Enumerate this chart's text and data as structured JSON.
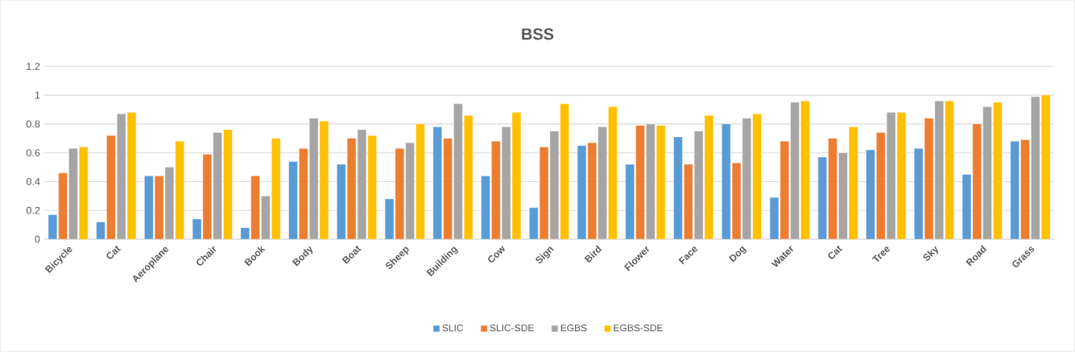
{
  "chart_data": {
    "type": "bar",
    "title": "BSS",
    "categories": [
      "Bicycle",
      "Cat",
      "Aeroplane",
      "Chair",
      "Book",
      "Body",
      "Boat",
      "Sheep",
      "Building",
      "Cow",
      "Sign",
      "Bird",
      "Flower",
      "Face",
      "Dog",
      "Water",
      "Cat",
      "Tree",
      "Sky",
      "Road",
      "Grass"
    ],
    "series": [
      {
        "name": "SLIC",
        "color": "#5b9bd5",
        "values": [
          0.17,
          0.12,
          0.44,
          0.14,
          0.08,
          0.54,
          0.52,
          0.28,
          0.78,
          0.44,
          0.22,
          0.65,
          0.52,
          0.71,
          0.8,
          0.29,
          0.57,
          0.62,
          0.63,
          0.45,
          0.68
        ]
      },
      {
        "name": "SLIC-SDE",
        "color": "#ed7d31",
        "values": [
          0.46,
          0.72,
          0.44,
          0.59,
          0.44,
          0.63,
          0.7,
          0.63,
          0.7,
          0.68,
          0.64,
          0.67,
          0.79,
          0.52,
          0.53,
          0.68,
          0.7,
          0.74,
          0.84,
          0.8,
          0.69
        ]
      },
      {
        "name": "EGBS",
        "color": "#a5a5a5",
        "values": [
          0.63,
          0.87,
          0.5,
          0.74,
          0.3,
          0.84,
          0.76,
          0.67,
          0.94,
          0.78,
          0.75,
          0.78,
          0.8,
          0.75,
          0.84,
          0.95,
          0.6,
          0.88,
          0.96,
          0.92,
          0.99
        ]
      },
      {
        "name": "EGBS-SDE",
        "color": "#ffc000",
        "values": [
          0.64,
          0.88,
          0.68,
          0.76,
          0.7,
          0.82,
          0.72,
          0.8,
          0.86,
          0.88,
          0.94,
          0.92,
          0.79,
          0.86,
          0.87,
          0.96,
          0.78,
          0.88,
          0.96,
          0.95,
          1.0
        ]
      }
    ],
    "ylim": [
      0,
      1.2
    ],
    "yticks": [
      0,
      0.2,
      0.4,
      0.6,
      0.8,
      1,
      1.2
    ],
    "grid": "y",
    "legend": "bottom"
  }
}
